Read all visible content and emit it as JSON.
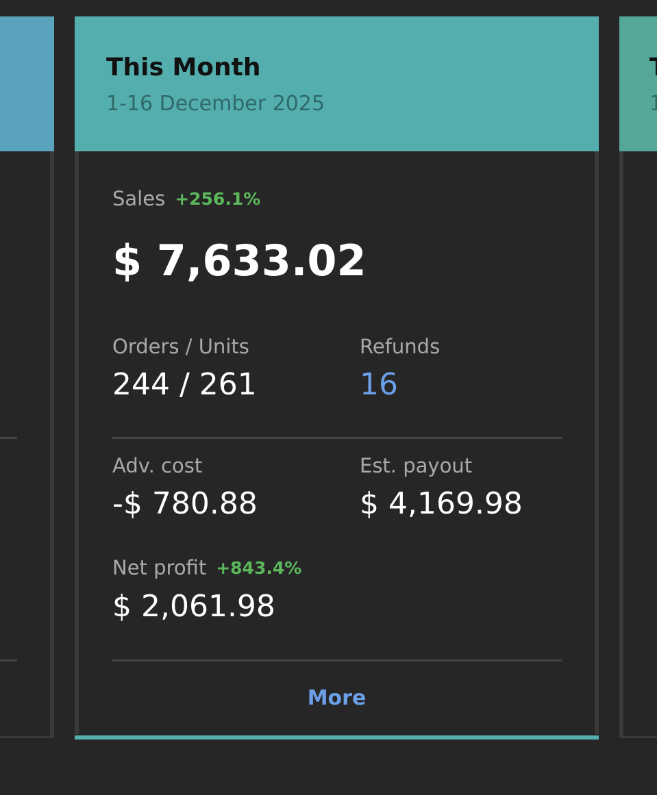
{
  "card": {
    "title": "This Month",
    "date_range": "1-16 December 2025",
    "sales": {
      "label": "Sales",
      "change": "+256.1%",
      "value": "$ 7,633.02"
    },
    "orders_units": {
      "label": "Orders / Units",
      "value": "244 / 261"
    },
    "refunds": {
      "label": "Refunds",
      "value": "16"
    },
    "adv_cost": {
      "label": "Adv. cost",
      "value": "-$ 780.88"
    },
    "est_payout": {
      "label": "Est. payout",
      "value": "$ 4,169.98"
    },
    "net_profit": {
      "label": "Net profit",
      "change": "+843.4%",
      "value": "$ 2,061.98"
    },
    "more": "More"
  },
  "next_card": {
    "title": "T",
    "date_range": "1"
  }
}
